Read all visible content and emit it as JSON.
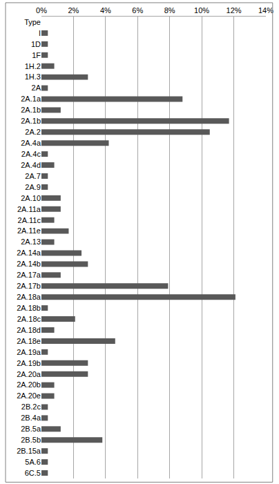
{
  "chart_data": {
    "type": "bar",
    "orientation": "horizontal",
    "color": "#595959",
    "grid": true,
    "categories": [
      "Type",
      "I",
      "1D",
      "1F",
      "1H.2",
      "1H.3",
      "2A",
      "2A.1a",
      "2A.1b",
      "2A.1b",
      "2A.2",
      "2A.4a",
      "2A.4c",
      "2A.4d",
      "2A.7",
      "2A.9",
      "2A.10",
      "2A.11a",
      "2A.11c",
      "2A.11e",
      "2A.13",
      "2A.14a",
      "2A.14b",
      "2A.17a",
      "2A.17b",
      "2A.18a",
      "2A.18b",
      "2A.18c",
      "2A.18d",
      "2A.18e",
      "2A.19a",
      "2A.19b",
      "2A.20a",
      "2A.20b",
      "2A.20e",
      "2B.2c",
      "2B.4a",
      "2B.5a",
      "2B.5b",
      "2B.15a",
      "5A.6",
      "6C.5"
    ],
    "values": [
      null,
      0.4,
      0.4,
      0.4,
      0.8,
      2.9,
      0.4,
      8.8,
      1.2,
      11.7,
      10.5,
      4.2,
      0.4,
      0.8,
      0.4,
      0.4,
      1.2,
      1.2,
      0.8,
      1.7,
      0.8,
      2.5,
      2.9,
      1.2,
      7.9,
      12.1,
      0.4,
      2.1,
      0.8,
      4.6,
      0.4,
      2.9,
      2.9,
      0.8,
      0.8,
      0.4,
      0.4,
      1.2,
      3.8,
      0.4,
      0.4,
      0.4
    ],
    "xlim": [
      0,
      14
    ],
    "xticks": [
      {
        "value": 0,
        "label": "0%"
      },
      {
        "value": 2,
        "label": "2%"
      },
      {
        "value": 4,
        "label": "4%"
      },
      {
        "value": 6,
        "label": "6%"
      },
      {
        "value": 8,
        "label": "8%"
      },
      {
        "value": 10,
        "label": "10%"
      },
      {
        "value": 12,
        "label": "12%"
      },
      {
        "value": 14,
        "label": "14%"
      }
    ]
  }
}
